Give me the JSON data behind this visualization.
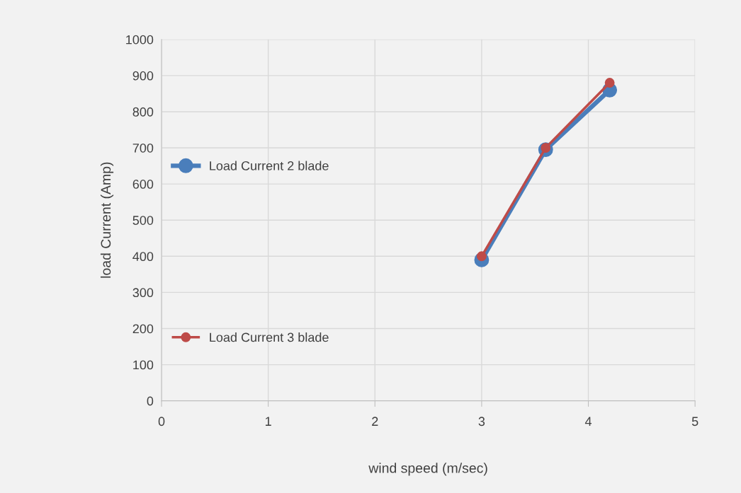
{
  "chart_data": {
    "type": "line",
    "xlabel": "wind speed (m/sec)",
    "ylabel": "load Current (Amp)",
    "series": [
      {
        "name": "Load Current 2 blade",
        "color": "#4a7ebb",
        "x": [
          3,
          3.6,
          4.2
        ],
        "values": [
          390,
          695,
          860
        ]
      },
      {
        "name": "Load Current 3 blade",
        "color": "#be4b48",
        "x": [
          3,
          3.6,
          4.2
        ],
        "values": [
          400,
          700,
          880
        ]
      }
    ],
    "xlim": [
      0,
      5
    ],
    "xticks": [
      0,
      1,
      2,
      3,
      4,
      5
    ],
    "ylim": [
      0,
      1000
    ],
    "yticks": [
      0,
      100,
      200,
      300,
      400,
      500,
      600,
      700,
      800,
      900,
      1000
    ],
    "grid": true,
    "legend": "left",
    "marker": "circle",
    "line_style": "solid"
  }
}
